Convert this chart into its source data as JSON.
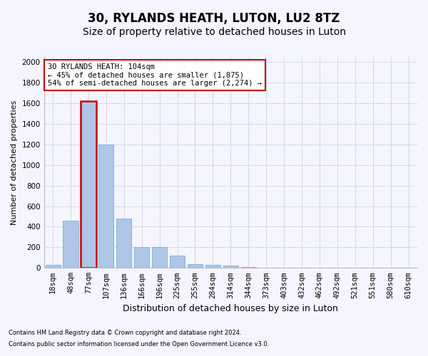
{
  "title": "30, RYLANDS HEATH, LUTON, LU2 8TZ",
  "subtitle": "Size of property relative to detached houses in Luton",
  "xlabel": "Distribution of detached houses by size in Luton",
  "ylabel": "Number of detached properties",
  "footnote1": "Contains HM Land Registry data © Crown copyright and database right 2024.",
  "footnote2": "Contains public sector information licensed under the Open Government Licence v3.0.",
  "categories": [
    "18sqm",
    "48sqm",
    "77sqm",
    "107sqm",
    "136sqm",
    "166sqm",
    "196sqm",
    "225sqm",
    "255sqm",
    "284sqm",
    "314sqm",
    "344sqm",
    "373sqm",
    "403sqm",
    "432sqm",
    "462sqm",
    "492sqm",
    "521sqm",
    "551sqm",
    "580sqm",
    "610sqm"
  ],
  "values": [
    30,
    460,
    1620,
    1200,
    480,
    205,
    205,
    120,
    40,
    30,
    20,
    10,
    0,
    0,
    0,
    0,
    0,
    0,
    0,
    0,
    0
  ],
  "bar_color": "#aec6e8",
  "bar_edgecolor": "#7aafd4",
  "highlight_bar_index": 2,
  "highlight_bar_edgecolor": "#cc0000",
  "annotation_text": "30 RYLANDS HEATH: 104sqm\n← 45% of detached houses are smaller (1,875)\n54% of semi-detached houses are larger (2,274) →",
  "annotation_box_facecolor": "white",
  "annotation_box_edgecolor": "#cc0000",
  "ylim": [
    0,
    2050
  ],
  "yticks": [
    0,
    200,
    400,
    600,
    800,
    1000,
    1200,
    1400,
    1600,
    1800,
    2000
  ],
  "grid_color": "#d0d8ee",
  "background_color": "#f5f5ff",
  "title_fontsize": 12,
  "subtitle_fontsize": 10,
  "tick_fontsize": 7.5,
  "ylabel_fontsize": 8,
  "xlabel_fontsize": 9,
  "annotation_fontsize": 7.5,
  "footnote_fontsize": 6
}
